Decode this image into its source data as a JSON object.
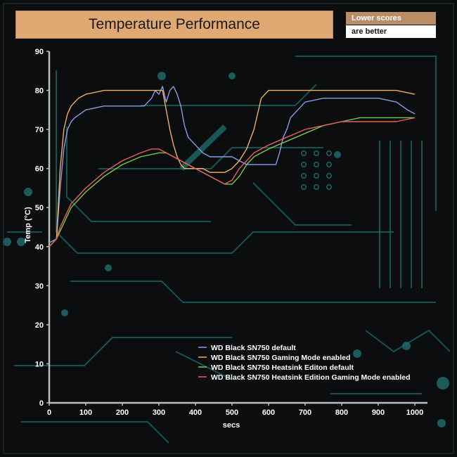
{
  "chart_data": {
    "type": "line",
    "title": "Temperature Performance",
    "note": [
      "Lower scores",
      "are better"
    ],
    "xlabel": "secs",
    "ylabel": "Temp (°C)",
    "xlim": [
      0,
      1000
    ],
    "ylim": [
      0,
      90
    ],
    "xticks": [
      0,
      100,
      200,
      300,
      400,
      500,
      600,
      700,
      800,
      900,
      1000
    ],
    "yticks": [
      0,
      10,
      20,
      30,
      40,
      50,
      60,
      70,
      80,
      90
    ],
    "legend_position": "bottom-right",
    "colors": {
      "background": "#0b0d0e",
      "title_box": "#e0a872",
      "note_top": "#b98d66",
      "circuit": "#1f6a6a",
      "axis": "#bcbcbc"
    },
    "series": [
      {
        "name": "WD Black SN750 default",
        "color": "#8c9be8",
        "x": [
          0,
          20,
          30,
          40,
          50,
          60,
          70,
          100,
          150,
          200,
          260,
          280,
          290,
          300,
          310,
          320,
          330,
          340,
          350,
          360,
          370,
          380,
          390,
          400,
          420,
          440,
          460,
          480,
          500,
          520,
          540,
          560,
          580,
          600,
          620,
          630,
          640,
          650,
          660,
          680,
          700,
          750,
          800,
          850,
          900,
          950,
          980,
          1000
        ],
        "y": [
          41,
          42,
          55,
          65,
          70,
          72,
          73,
          75,
          76,
          76,
          76,
          78,
          80,
          79,
          81,
          77,
          80,
          81,
          79,
          76,
          71,
          68,
          67,
          66,
          64,
          63,
          63,
          63,
          63,
          62,
          61,
          61,
          61,
          61,
          61,
          64,
          68,
          70,
          73,
          75,
          77,
          78,
          78,
          78,
          78,
          77,
          75,
          74
        ]
      },
      {
        "name": "WD Black SN750 Gaming Mode enabled",
        "color": "#f0b060",
        "x": [
          0,
          20,
          30,
          40,
          50,
          60,
          70,
          80,
          100,
          150,
          200,
          250,
          300,
          310,
          320,
          330,
          340,
          350,
          360,
          370,
          380,
          400,
          420,
          440,
          460,
          480,
          500,
          520,
          540,
          560,
          570,
          580,
          600,
          650,
          700,
          750,
          800,
          850,
          900,
          950,
          1000
        ],
        "y": [
          40,
          42,
          60,
          70,
          74,
          76,
          77,
          78,
          79,
          80,
          80,
          80,
          80,
          80,
          75,
          70,
          66,
          63,
          61,
          60,
          60,
          60,
          60,
          59,
          59,
          59,
          60,
          62,
          65,
          70,
          74,
          78,
          80,
          80,
          80,
          80,
          80,
          80,
          80,
          80,
          79
        ]
      },
      {
        "name": "WD Black SN750 Heatsink Editon default",
        "color": "#7cc84a",
        "x": [
          0,
          20,
          30,
          40,
          50,
          60,
          80,
          100,
          150,
          200,
          250,
          300,
          320,
          340,
          360,
          380,
          400,
          420,
          440,
          460,
          480,
          500,
          520,
          540,
          560,
          580,
          600,
          650,
          700,
          750,
          800,
          850,
          900,
          950,
          1000
        ],
        "y": [
          40,
          42,
          44,
          46,
          48,
          50,
          52,
          54,
          58,
          61,
          63,
          64,
          64,
          63,
          62,
          61,
          60,
          59,
          58,
          57,
          56,
          56,
          58,
          61,
          63,
          64,
          65,
          67,
          69,
          71,
          72,
          73,
          73,
          73,
          73
        ]
      },
      {
        "name": "WD Black SN750 Heatsink Edition Gaming Mode enabled",
        "color": "#e86060",
        "x": [
          0,
          20,
          30,
          40,
          50,
          60,
          80,
          100,
          150,
          200,
          250,
          280,
          300,
          320,
          340,
          360,
          380,
          400,
          420,
          440,
          460,
          480,
          500,
          520,
          540,
          560,
          580,
          600,
          650,
          700,
          750,
          800,
          850,
          900,
          950,
          1000
        ],
        "y": [
          40,
          42,
          45,
          47,
          49,
          51,
          53,
          55,
          59,
          62,
          64,
          65,
          65,
          64,
          63,
          62,
          61,
          60,
          59,
          58,
          57,
          56,
          57,
          60,
          62,
          64,
          65,
          66,
          68,
          70,
          71,
          72,
          72,
          72,
          72,
          73
        ]
      }
    ]
  }
}
